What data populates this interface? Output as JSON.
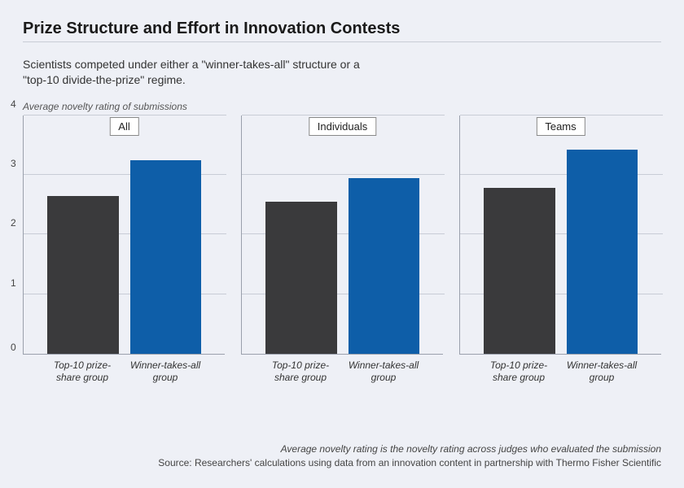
{
  "title": "Prize Structure and Effort in Innovation Contests",
  "subtitle": "Scientists competed under either a \"winner-takes-all\" structure or a \"top-10 divide-the-prize\" regime.",
  "axis_title": "Average novelty rating of submissions",
  "chart": {
    "type": "bar",
    "ylim": [
      0,
      4
    ],
    "ytick_step": 1,
    "yticks": [
      0,
      1,
      2,
      3,
      4
    ],
    "background_color": "#eef0f6",
    "grid_color": "#c8ccd6",
    "axis_color": "#9aa0ac",
    "bar_colors": [
      "#3a3a3c",
      "#0e5ea8"
    ],
    "category_labels": [
      "Top-10 prize-share group",
      "Winner-takes-all group"
    ],
    "title_fontsize": 20,
    "label_fontsize": 12,
    "panels": [
      {
        "name": "All",
        "values": [
          2.65,
          3.25
        ]
      },
      {
        "name": "Individuals",
        "values": [
          2.55,
          2.95
        ]
      },
      {
        "name": "Teams",
        "values": [
          2.78,
          3.42
        ]
      }
    ]
  },
  "footnote": "Average novelty rating is the novelty rating across judges who evaluated the submission",
  "source": "Source: Researchers' calculations using data from an innovation content in partnership with Thermo Fisher Scientific"
}
